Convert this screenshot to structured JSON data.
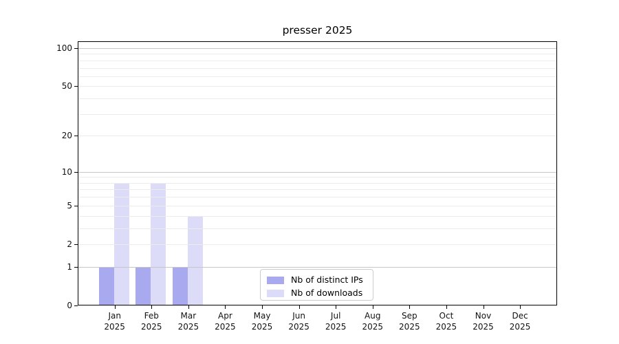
{
  "chart_data": {
    "type": "bar",
    "title": "presser 2025",
    "xlabel": "",
    "ylabel": "",
    "categories": [
      [
        "Jan",
        "2025"
      ],
      [
        "Feb",
        "2025"
      ],
      [
        "Mar",
        "2025"
      ],
      [
        "Apr",
        "2025"
      ],
      [
        "May",
        "2025"
      ],
      [
        "Jun",
        "2025"
      ],
      [
        "Jul",
        "2025"
      ],
      [
        "Aug",
        "2025"
      ],
      [
        "Sep",
        "2025"
      ],
      [
        "Oct",
        "2025"
      ],
      [
        "Nov",
        "2025"
      ],
      [
        "Dec",
        "2025"
      ]
    ],
    "series": [
      {
        "name": "Nb of distinct IPs",
        "color": "#a9a9f0",
        "values": [
          1,
          1,
          1,
          0,
          0,
          0,
          0,
          0,
          0,
          0,
          0,
          0
        ]
      },
      {
        "name": "Nb of downloads",
        "color": "#dcdcf8",
        "values": [
          8,
          8,
          4,
          0,
          0,
          0,
          0,
          0,
          0,
          0,
          0,
          0
        ]
      }
    ],
    "yscale": "log1p",
    "ylim": [
      0,
      114
    ],
    "yticks": [
      0,
      1,
      2,
      5,
      10,
      20,
      50,
      100
    ],
    "major_gridlines": [
      1,
      10,
      100
    ],
    "minor_gridlines": [
      2,
      3,
      4,
      5,
      6,
      7,
      8,
      9,
      20,
      30,
      40,
      50,
      60,
      70,
      80,
      90
    ],
    "grid_major_color": "#c6c6c6",
    "grid_minor_color": "#ececec",
    "legend_position": "lower center",
    "grid": "on"
  }
}
